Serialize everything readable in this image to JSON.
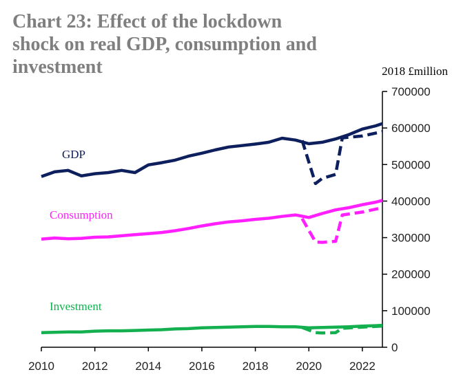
{
  "chart_data": {
    "type": "line",
    "title_lines": [
      "Chart 23:  Effect of the lockdown",
      "shock on real GDP, consumption and",
      "investment"
    ],
    "y_unit": "2018 £million",
    "x": [
      2010,
      2010.5,
      2011,
      2011.5,
      2012,
      2012.5,
      2013,
      2013.5,
      2014,
      2014.5,
      2015,
      2015.5,
      2016,
      2016.5,
      2017,
      2017.5,
      2018,
      2018.5,
      2019,
      2019.5,
      2020,
      2020.5,
      2021,
      2021.5,
      2022,
      2022.5,
      2022.75
    ],
    "series": [
      {
        "name": "GDP",
        "color": "#0d1f5c",
        "dash": false,
        "values": [
          467000,
          480000,
          484000,
          469000,
          475000,
          478000,
          484000,
          478000,
          499000,
          505000,
          512000,
          523000,
          531000,
          540000,
          548000,
          552000,
          556000,
          561000,
          572000,
          567000,
          557000,
          561000,
          570000,
          582000,
          597000,
          606000,
          612000
        ]
      },
      {
        "color": "#0d1f5c",
        "dash": true,
        "x": [
          2019.75,
          2020.25,
          2020.5,
          2021,
          2021.25,
          2022,
          2022.75
        ],
        "values": [
          566000,
          448000,
          462000,
          473000,
          573000,
          578000,
          590000
        ]
      },
      {
        "name": "Consumption",
        "color": "#ff1fff",
        "dash": false,
        "values": [
          296000,
          299000,
          297000,
          298000,
          301000,
          302000,
          305000,
          308000,
          311000,
          314000,
          319000,
          325000,
          332000,
          338000,
          343000,
          346000,
          350000,
          353000,
          358000,
          362000,
          355000,
          366000,
          376000,
          382000,
          390000,
          397000,
          402000
        ]
      },
      {
        "color": "#ff1fff",
        "dash": true,
        "x": [
          2019.75,
          2020.25,
          2020.5,
          2021,
          2021.25,
          2022,
          2022.75
        ],
        "values": [
          352000,
          288000,
          287000,
          290000,
          362000,
          370000,
          382000
        ]
      },
      {
        "name": "Investment",
        "color": "#14b050",
        "dash": false,
        "values": [
          40000,
          41000,
          42000,
          42000,
          44000,
          45000,
          45000,
          46000,
          47000,
          48000,
          50000,
          51000,
          53000,
          54000,
          55000,
          56000,
          57000,
          57000,
          56000,
          56000,
          53000,
          54000,
          55000,
          56000,
          58000,
          59000,
          60000
        ]
      },
      {
        "color": "#14b050",
        "dash": true,
        "x": [
          2019.75,
          2020.25,
          2020.5,
          2021,
          2021.25,
          2022,
          2022.75
        ],
        "values": [
          54000,
          40000,
          39000,
          40000,
          52000,
          55000,
          58000
        ]
      }
    ],
    "xlim": [
      2010,
      2022.75
    ],
    "xticks": [
      2010,
      2012,
      2014,
      2016,
      2018,
      2020,
      2022
    ],
    "ylim": [
      0,
      700000
    ],
    "yticks": [
      0,
      100000,
      200000,
      300000,
      400000,
      500000,
      600000,
      700000
    ],
    "y_axis_side": "right"
  }
}
